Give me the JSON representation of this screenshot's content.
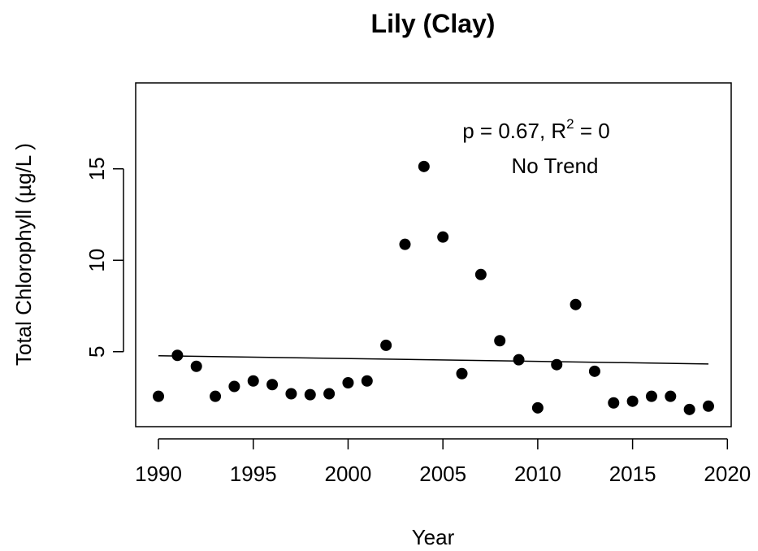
{
  "chart_data": {
    "type": "scatter",
    "title": "Lily (Clay)",
    "x_label": "Year",
    "y_label": "Total Chlorophyll (µg/L )",
    "x": [
      1990,
      1991,
      1992,
      1993,
      1994,
      1995,
      1996,
      1997,
      1998,
      1999,
      2000,
      2001,
      2002,
      2003,
      2004,
      2005,
      2006,
      2007,
      2008,
      2009,
      2010,
      2011,
      2012,
      2013,
      2014,
      2015,
      2016,
      2017,
      2018,
      2019
    ],
    "values": [
      2.56,
      4.8,
      4.2,
      2.56,
      3.1,
      3.4,
      3.2,
      2.7,
      2.65,
      2.7,
      3.3,
      3.4,
      5.35,
      10.87,
      15.13,
      11.27,
      3.8,
      9.22,
      5.6,
      4.56,
      1.93,
      4.29,
      7.58,
      3.93,
      2.2,
      2.29,
      2.56,
      2.56,
      1.84,
      2.02
    ],
    "color": "#000000",
    "trend": {
      "x": [
        1990,
        2019
      ],
      "values": [
        4.78,
        4.33
      ]
    },
    "annotation": {
      "stat_text": "p = 0.67, R",
      "stat_sup": "2",
      "stat_suffix": " = 0",
      "trend_text": "No Trend"
    },
    "xlim": [
      1988.8,
      2020.2
    ],
    "ylim": [
      0.9,
      19.7
    ],
    "xticks": [
      1990,
      1995,
      2000,
      2005,
      2010,
      2015,
      2020
    ],
    "yticks": [
      5,
      10,
      15
    ],
    "grid": false
  }
}
